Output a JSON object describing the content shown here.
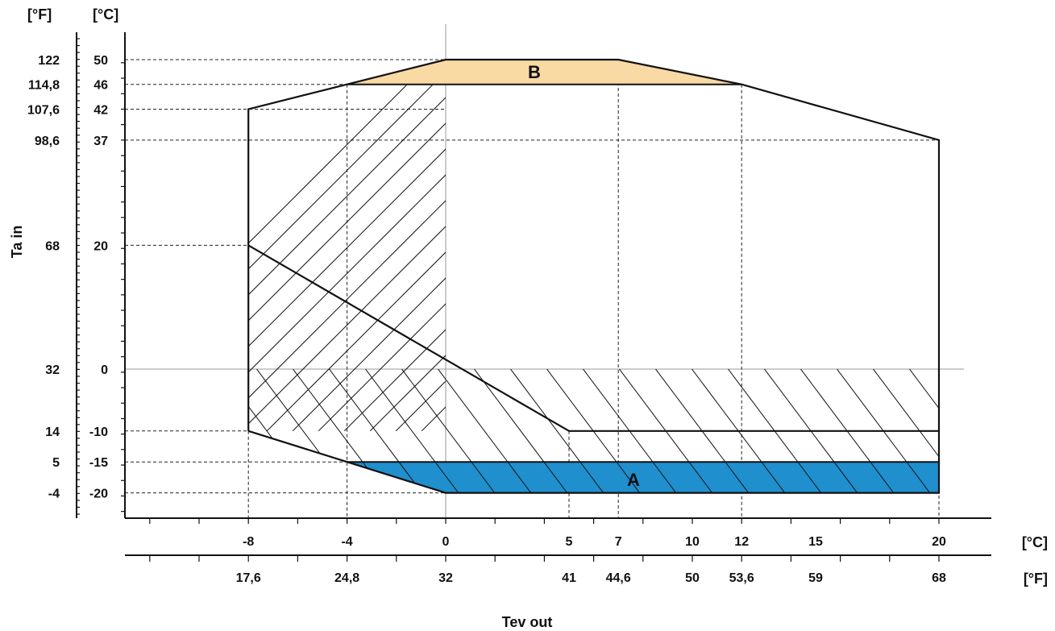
{
  "chart_data": {
    "type": "area",
    "xlabel": "Tev out",
    "ylabel": "Ta in",
    "x_unit_primary": "[°C]",
    "x_unit_secondary": "[°F]",
    "y_unit_primary": "[°C]",
    "y_unit_secondary": "[°F]",
    "xlim": [
      -12,
      21
    ],
    "ylim": [
      -27,
      50
    ],
    "x_ticks": [
      {
        "c": "-8",
        "f": "17,6"
      },
      {
        "c": "-4",
        "f": "24,8"
      },
      {
        "c": "0",
        "f": "32"
      },
      {
        "c": "5",
        "f": "41"
      },
      {
        "c": "7",
        "f": "44,6"
      },
      {
        "c": "10",
        "f": "50"
      },
      {
        "c": "12",
        "f": "53,6"
      },
      {
        "c": "15",
        "f": "59"
      },
      {
        "c": "20",
        "f": "68"
      }
    ],
    "y_ticks": [
      {
        "c": "50",
        "f": "122"
      },
      {
        "c": "46",
        "f": "114,8"
      },
      {
        "c": "42",
        "f": "107,6"
      },
      {
        "c": "37",
        "f": "98,6"
      },
      {
        "c": "20",
        "f": "68"
      },
      {
        "c": "0",
        "f": "32"
      },
      {
        "c": "-10",
        "f": "14"
      },
      {
        "c": "-15",
        "f": "5"
      },
      {
        "c": "-20",
        "f": "-4"
      }
    ],
    "operating_envelope": [
      [
        -8,
        -10
      ],
      [
        -8,
        42
      ],
      [
        -4,
        46
      ],
      [
        0,
        50
      ],
      [
        7,
        50
      ],
      [
        12,
        46
      ],
      [
        20,
        37
      ],
      [
        20,
        -20
      ],
      [
        0,
        -20
      ],
      [
        -4,
        -15
      ],
      [
        -8,
        -10
      ]
    ],
    "divider_line": [
      [
        -8,
        20
      ],
      [
        5,
        -10
      ],
      [
        20,
        -10
      ]
    ],
    "zones": [
      {
        "label": "A",
        "color": "#1f8fce",
        "polygon": [
          [
            -4,
            -15
          ],
          [
            20,
            -15
          ],
          [
            20,
            -20
          ],
          [
            0,
            -20
          ]
        ]
      },
      {
        "label": "B",
        "color": "#f9d9a4",
        "polygon": [
          [
            -4,
            46
          ],
          [
            0,
            50
          ],
          [
            7,
            50
          ],
          [
            12,
            46
          ]
        ]
      }
    ],
    "hatched_regions": [
      {
        "direction": "positive-slope",
        "x_range": [
          -8,
          0
        ],
        "y_range": [
          -10,
          46
        ]
      },
      {
        "direction": "negative-slope",
        "x_range": [
          -8,
          20
        ],
        "y_range": [
          -20,
          0
        ]
      }
    ],
    "reference_lines_x": [
      -8,
      -4,
      0,
      5,
      7,
      12,
      20
    ],
    "reference_lines_y": [
      50,
      46,
      42,
      37,
      20,
      0,
      -10,
      -15,
      -20
    ],
    "grid": false,
    "legend": "none"
  }
}
